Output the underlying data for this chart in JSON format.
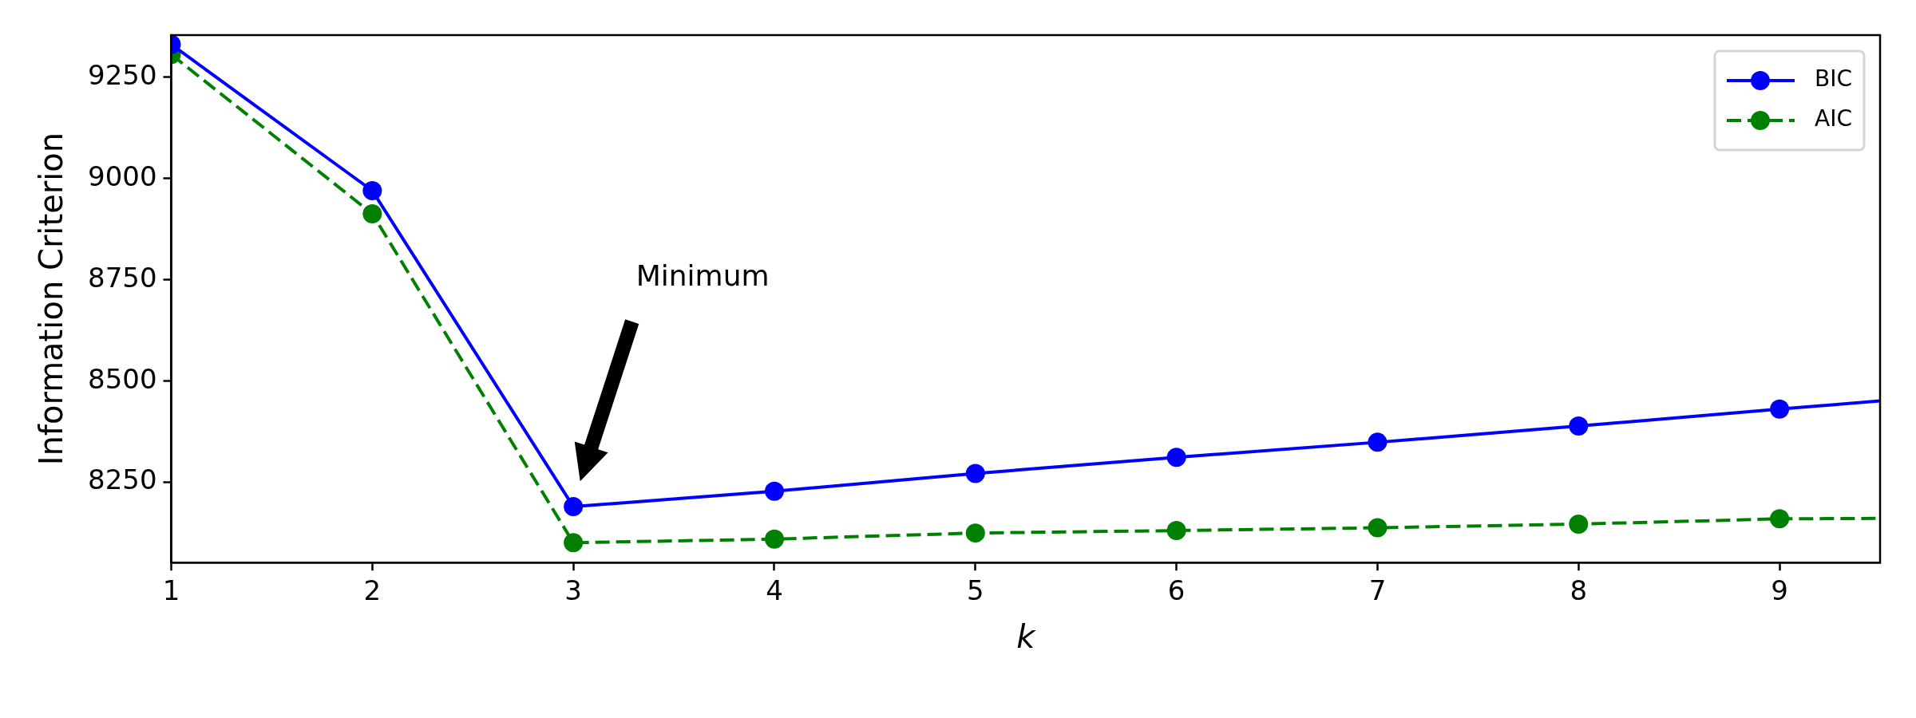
{
  "chart_data": {
    "type": "line",
    "xlabel": "k",
    "ylabel": "Information Criterion",
    "xlim": [
      1,
      9.5
    ],
    "xticks": [
      1,
      2,
      3,
      4,
      5,
      6,
      7,
      8,
      9
    ],
    "ylim": [
      8052,
      9354
    ],
    "yticks": [
      8250,
      8500,
      8750,
      9000,
      9250
    ],
    "series": [
      {
        "name": "BIC",
        "color": "#0000ff",
        "line_style": "solid",
        "marker": "circle",
        "x": [
          1,
          2,
          3,
          4,
          5,
          6,
          7,
          8,
          9,
          9.5
        ],
        "values": [
          9331,
          8970,
          8190,
          8228,
          8272,
          8312,
          8349,
          8389,
          8431,
          8451
        ]
      },
      {
        "name": "AIC",
        "color": "#008000",
        "line_style": "dashed",
        "marker": "circle",
        "x": [
          1,
          2,
          3,
          4,
          5,
          6,
          7,
          8,
          9,
          9.5
        ],
        "values": [
          9306,
          8913,
          8101,
          8110,
          8125,
          8131,
          8138,
          8147,
          8160,
          8161
        ]
      }
    ],
    "annotations": [
      "Minimum"
    ],
    "legend": "top right",
    "grid": false
  }
}
